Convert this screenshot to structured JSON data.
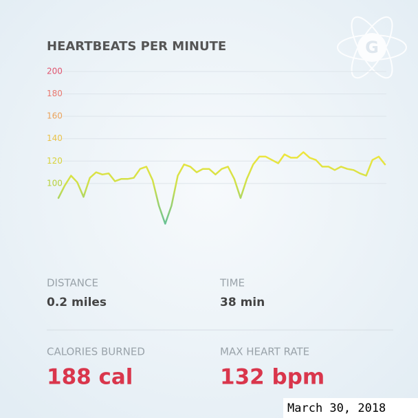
{
  "chart_data": {
    "type": "line",
    "title": "HEARTBEATS PER MINUTE",
    "values": [
      87,
      98,
      107,
      101,
      88,
      105,
      110,
      108,
      109,
      102,
      104,
      104,
      105,
      113,
      115,
      103,
      80,
      64,
      80,
      107,
      117,
      115,
      110,
      113,
      113,
      108,
      113,
      115,
      104,
      87,
      104,
      117,
      124,
      124,
      121,
      118,
      126,
      123,
      123,
      128,
      123,
      121,
      115,
      115,
      112,
      115,
      113,
      112,
      109,
      107,
      121,
      124,
      117
    ],
    "ylim": [
      60,
      200
    ],
    "yticks": [
      100,
      120,
      140,
      160,
      180,
      200
    ],
    "ytick_colors": [
      "#b7d13a",
      "#d8d23a",
      "#e9c24a",
      "#eba25a",
      "#e9776e",
      "#e0546e"
    ],
    "line_colors": [
      "#f0e63c",
      "#cfe04a",
      "#5fbf9a"
    ],
    "grid": true
  },
  "logo": "G",
  "stats": [
    {
      "label": "DISTANCE",
      "value": "0.2 miles"
    },
    {
      "label": "TIME",
      "value": "38 min"
    },
    {
      "label": "CALORIES BURNED",
      "value": "188 cal"
    },
    {
      "label": "MAX HEART RATE",
      "value": "132 bpm"
    }
  ],
  "date": "March 30, 2018"
}
